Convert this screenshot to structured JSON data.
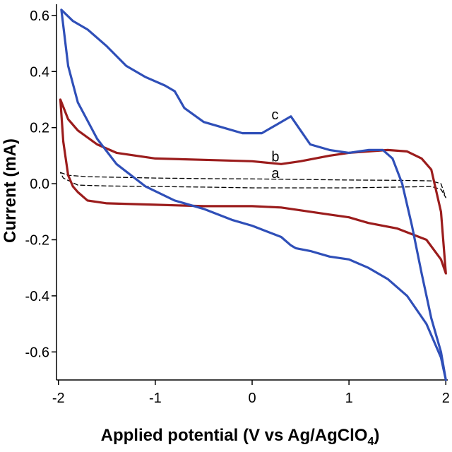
{
  "chart_data": {
    "type": "line",
    "title": "",
    "xlabel": "Applied potential (V vs Ag/AgClO",
    "xlabel_subscript": "4",
    "xlabel_suffix": ")",
    "ylabel": "Current (mA)",
    "xlim": [
      -2.02,
      2.02
    ],
    "ylim": [
      -0.7,
      0.64
    ],
    "xticks": [
      -2,
      -1,
      0,
      1,
      2
    ],
    "xtick_labels": [
      "-2",
      "-1",
      "0",
      "1",
      "2"
    ],
    "yticks": [
      -0.6,
      -0.4,
      -0.2,
      0.0,
      0.2,
      0.4,
      0.6
    ],
    "ytick_labels": [
      "-0.6",
      "-0.4",
      "-0.2",
      "0.0",
      "0.2",
      "0.4",
      "0.6"
    ],
    "grid": false,
    "legend": "none",
    "series": [
      {
        "name": "a",
        "color": "#000000",
        "dash": "dashed",
        "label_at": [
          0.2,
          0.02
        ],
        "x": [
          -1.98,
          -1.9,
          -1.7,
          -1.0,
          -0.5,
          0,
          0.5,
          1.0,
          1.5,
          1.85,
          1.95,
          2.0,
          1.95,
          1.85,
          1.5,
          1.0,
          0.5,
          0,
          -0.5,
          -1.0,
          -1.5,
          -1.8,
          -1.95,
          -1.98
        ],
        "y": [
          0.04,
          0.03,
          0.025,
          0.02,
          0.018,
          0.017,
          0.015,
          0.013,
          0.012,
          0.01,
          0.0,
          -0.05,
          -0.02,
          -0.01,
          -0.012,
          -0.015,
          -0.015,
          -0.015,
          -0.012,
          -0.01,
          -0.008,
          -0.005,
          0.02,
          0.04
        ]
      },
      {
        "name": "b",
        "color": "#9b1c1c",
        "dash": "solid",
        "label_at": [
          0.2,
          0.08
        ],
        "x": [
          -1.98,
          -1.9,
          -1.8,
          -1.6,
          -1.4,
          -1.2,
          -1.0,
          -0.5,
          0,
          0.3,
          0.5,
          0.8,
          1.0,
          1.2,
          1.4,
          1.6,
          1.75,
          1.85,
          1.95,
          2.0,
          1.95,
          1.8,
          1.5,
          1.2,
          1.0,
          0.8,
          0.5,
          0.3,
          0,
          -0.5,
          -1.0,
          -1.5,
          -1.7,
          -1.8,
          -1.85,
          -1.9,
          -1.95,
          -1.98
        ],
        "y": [
          0.3,
          0.23,
          0.19,
          0.14,
          0.11,
          0.1,
          0.09,
          0.085,
          0.08,
          0.07,
          0.08,
          0.1,
          0.11,
          0.115,
          0.12,
          0.115,
          0.09,
          0.05,
          -0.1,
          -0.32,
          -0.27,
          -0.2,
          -0.16,
          -0.14,
          -0.12,
          -0.11,
          -0.095,
          -0.085,
          -0.08,
          -0.08,
          -0.075,
          -0.07,
          -0.06,
          -0.03,
          -0.01,
          0.03,
          0.15,
          0.3
        ]
      },
      {
        "name": "c",
        "color": "#2f4fb8",
        "dash": "solid",
        "label_at": [
          0.2,
          0.23
        ],
        "x": [
          -1.97,
          -1.85,
          -1.7,
          -1.5,
          -1.3,
          -1.1,
          -0.9,
          -0.8,
          -0.7,
          -0.5,
          -0.3,
          -0.1,
          0.1,
          0.25,
          0.4,
          0.5,
          0.6,
          0.8,
          1.0,
          1.2,
          1.35,
          1.45,
          1.55,
          1.65,
          1.75,
          1.85,
          1.95,
          2.0,
          1.95,
          1.8,
          1.6,
          1.4,
          1.2,
          1.0,
          0.8,
          0.6,
          0.45,
          0.4,
          0.3,
          0.15,
          0,
          -0.2,
          -0.5,
          -0.8,
          -1.1,
          -1.4,
          -1.6,
          -1.8,
          -1.9,
          -1.97
        ],
        "y": [
          0.62,
          0.58,
          0.55,
          0.49,
          0.42,
          0.38,
          0.35,
          0.33,
          0.27,
          0.22,
          0.2,
          0.18,
          0.18,
          0.21,
          0.24,
          0.19,
          0.14,
          0.12,
          0.11,
          0.12,
          0.12,
          0.09,
          0.0,
          -0.15,
          -0.32,
          -0.48,
          -0.6,
          -0.7,
          -0.62,
          -0.5,
          -0.4,
          -0.34,
          -0.3,
          -0.27,
          -0.26,
          -0.24,
          -0.23,
          -0.22,
          -0.19,
          -0.17,
          -0.15,
          -0.13,
          -0.09,
          -0.06,
          -0.01,
          0.07,
          0.16,
          0.29,
          0.42,
          0.62
        ]
      }
    ]
  }
}
